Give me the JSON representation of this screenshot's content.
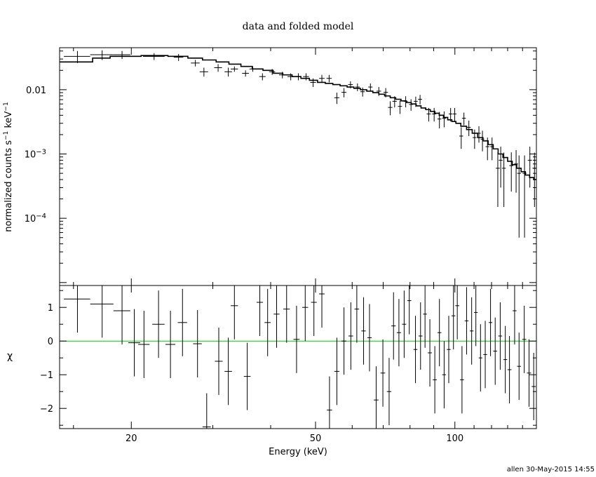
{
  "chart_data": [
    {
      "type": "scatter",
      "title": "data and folded model",
      "ylabel": "normalized counts s^-1 keV^-1",
      "xscale": "log",
      "yscale": "log",
      "xlim": [
        14,
        150
      ],
      "ylim": [
        9e-06,
        0.045
      ],
      "y_ticks": [
        {
          "value": 0.01,
          "label": "0.01"
        },
        {
          "value": 0.001,
          "label": "10",
          "exp": "−3"
        },
        {
          "value": 0.0001,
          "label": "10",
          "exp": "−4"
        }
      ],
      "series": [
        {
          "kind": "data",
          "color": "#000000",
          "points": [
            [
              15.3,
              0.033,
              1.0,
              0.007
            ],
            [
              17.3,
              0.035,
              1.0,
              0.006
            ],
            [
              19.1,
              0.035,
              0.8,
              0.005
            ],
            [
              22.4,
              0.033,
              1.2,
              0.004
            ],
            [
              25.3,
              0.032,
              0.6,
              0.004
            ],
            [
              27.5,
              0.026,
              0.6,
              0.003
            ],
            [
              28.7,
              0.019,
              0.6,
              0.003
            ],
            [
              30.8,
              0.022,
              0.6,
              0.003
            ],
            [
              32.4,
              0.019,
              0.6,
              0.003
            ],
            [
              33.4,
              0.021,
              0.6,
              0.002
            ],
            [
              35.3,
              0.018,
              0.6,
              0.002
            ],
            [
              36.6,
              0.021,
              0.6,
              0.002
            ],
            [
              38.4,
              0.016,
              0.6,
              0.002
            ],
            [
              40.3,
              0.019,
              0.6,
              0.002
            ],
            [
              42.4,
              0.017,
              0.7,
              0.002
            ],
            [
              44.2,
              0.016,
              0.7,
              0.002
            ],
            [
              45.9,
              0.016,
              0.7,
              0.002
            ],
            [
              47.7,
              0.016,
              0.7,
              0.002
            ],
            [
              49.4,
              0.013,
              0.7,
              0.002
            ],
            [
              51.6,
              0.015,
              0.7,
              0.002
            ],
            [
              53.5,
              0.015,
              0.7,
              0.002
            ],
            [
              55.6,
              0.0075,
              0.7,
              0.0015
            ],
            [
              57.6,
              0.0091,
              0.7,
              0.0015
            ],
            [
              59.5,
              0.012,
              0.7,
              0.0015
            ],
            [
              61.6,
              0.011,
              0.7,
              0.0015
            ],
            [
              63.2,
              0.0093,
              0.7,
              0.0015
            ],
            [
              65.7,
              0.011,
              0.7,
              0.0015
            ],
            [
              68.5,
              0.0095,
              0.8,
              0.0015
            ],
            [
              70.9,
              0.0091,
              0.8,
              0.0015
            ],
            [
              72.5,
              0.0053,
              0.8,
              0.0013
            ],
            [
              74.1,
              0.0066,
              0.8,
              0.0013
            ],
            [
              76.1,
              0.0055,
              0.8,
              0.0013
            ],
            [
              78.3,
              0.0066,
              0.8,
              0.0013
            ],
            [
              80.4,
              0.0059,
              0.8,
              0.0012
            ],
            [
              82.3,
              0.0066,
              0.8,
              0.0012
            ],
            [
              84.1,
              0.0071,
              0.8,
              0.0012
            ],
            [
              87.8,
              0.0042,
              0.9,
              0.001
            ],
            [
              90.2,
              0.0042,
              0.9,
              0.001
            ],
            [
              92.6,
              0.0035,
              0.9,
              0.001
            ],
            [
              94.8,
              0.0036,
              0.9,
              0.001
            ],
            [
              97.9,
              0.0042,
              0.9,
              0.001
            ],
            [
              99.9,
              0.0042,
              0.9,
              0.001
            ],
            [
              103.2,
              0.0019,
              1.0,
              0.0007
            ],
            [
              104.6,
              0.0036,
              1.0,
              0.0008
            ],
            [
              107.2,
              0.0026,
              1.0,
              0.0007
            ],
            [
              110.3,
              0.0018,
              1.0,
              0.0006
            ],
            [
              112.7,
              0.0021,
              1.0,
              0.0006
            ],
            [
              114.7,
              0.0017,
              1.0,
              0.0006
            ],
            [
              117.6,
              0.0013,
              1.1,
              0.0005
            ],
            [
              120.3,
              0.0013,
              1.1,
              0.0005
            ],
            [
              123.8,
              0.0006,
              1.2,
              0.00045
            ],
            [
              125.6,
              0.0008,
              1.2,
              0.0005
            ],
            [
              127.6,
              0.0006,
              1.2,
              0.00045
            ],
            [
              132.4,
              0.00066,
              1.3,
              0.0004
            ],
            [
              135.6,
              0.0007,
              1.3,
              0.00045
            ],
            [
              137.6,
              0.0005,
              1.3,
              0.00045
            ],
            [
              141.4,
              0.0005,
              1.4,
              0.00045
            ],
            [
              145.2,
              0.0008,
              1.5,
              0.0005
            ],
            [
              148.6,
              0.0006,
              1.5,
              0.00045
            ]
          ]
        },
        {
          "kind": "model",
          "color": "#000000",
          "steps": [
            [
              14.0,
              0.027
            ],
            [
              16.5,
              0.031
            ],
            [
              18.0,
              0.033
            ],
            [
              21.0,
              0.034
            ],
            [
              24.0,
              0.033
            ],
            [
              26.5,
              0.031
            ],
            [
              28.5,
              0.029
            ],
            [
              30.5,
              0.027
            ],
            [
              32.5,
              0.025
            ],
            [
              34.5,
              0.023
            ],
            [
              36.5,
              0.021
            ],
            [
              38.5,
              0.02
            ],
            [
              40.5,
              0.018
            ],
            [
              42.5,
              0.017
            ],
            [
              44.5,
              0.016
            ],
            [
              46.5,
              0.015
            ],
            [
              48.5,
              0.014
            ],
            [
              50.5,
              0.013
            ],
            [
              52.5,
              0.0125
            ],
            [
              54.5,
              0.012
            ],
            [
              56.5,
              0.0115
            ],
            [
              58.5,
              0.011
            ],
            [
              60.5,
              0.0105
            ],
            [
              62.5,
              0.01
            ],
            [
              64.5,
              0.0095
            ],
            [
              66.5,
              0.009
            ],
            [
              68.5,
              0.0085
            ],
            [
              70.5,
              0.008
            ],
            [
              72.5,
              0.0075
            ],
            [
              74.5,
              0.0071
            ],
            [
              76.5,
              0.0067
            ],
            [
              78.5,
              0.0063
            ],
            [
              80.5,
              0.006
            ],
            [
              82.5,
              0.0056
            ],
            [
              84.5,
              0.0052
            ],
            [
              86.5,
              0.0049
            ],
            [
              88.5,
              0.0046
            ],
            [
              90.5,
              0.0043
            ],
            [
              92.5,
              0.004
            ],
            [
              94.5,
              0.0037
            ],
            [
              96.5,
              0.0034
            ],
            [
              98.5,
              0.0032
            ],
            [
              100.5,
              0.003
            ],
            [
              103.0,
              0.0027
            ],
            [
              106.0,
              0.0024
            ],
            [
              109.0,
              0.0021
            ],
            [
              112.0,
              0.0018
            ],
            [
              115.0,
              0.0016
            ],
            [
              118.0,
              0.0014
            ],
            [
              121.0,
              0.0012
            ],
            [
              124.0,
              0.001
            ],
            [
              127.0,
              0.00088
            ],
            [
              130.0,
              0.00077
            ],
            [
              133.0,
              0.00068
            ],
            [
              136.0,
              0.0006
            ],
            [
              139.0,
              0.00053
            ],
            [
              142.0,
              0.00047
            ],
            [
              145.0,
              0.00043
            ],
            [
              148.0,
              0.0004
            ],
            [
              150.0,
              0.0004
            ]
          ]
        }
      ]
    },
    {
      "type": "scatter",
      "xlabel": "Energy (keV)",
      "ylabel": "χ",
      "xscale": "log",
      "xlim": [
        14,
        150
      ],
      "ylim": [
        -2.6,
        1.65
      ],
      "x_ticks": [
        {
          "value": 20,
          "label": "20"
        },
        {
          "value": 50,
          "label": "50"
        },
        {
          "value": 100,
          "label": "100"
        }
      ],
      "y_ticks": [
        {
          "value": 1,
          "label": "1"
        },
        {
          "value": 0,
          "label": "0"
        },
        {
          "value": -1,
          "label": "−1"
        },
        {
          "value": -2,
          "label": "−2"
        }
      ],
      "zero_line_color": "#00cc00",
      "series": [
        {
          "kind": "residuals",
          "color": "#000000",
          "points": [
            [
              15.3,
              1.25,
              1.0,
              1.0
            ],
            [
              17.3,
              1.1,
              1.0,
              1.0
            ],
            [
              19.1,
              0.9,
              0.8,
              1.0
            ],
            [
              20.3,
              -0.05,
              0.6,
              1.0
            ],
            [
              21.3,
              -0.1,
              0.6,
              1.0
            ],
            [
              22.9,
              0.5,
              0.7,
              1.0
            ],
            [
              24.3,
              -0.1,
              0.6,
              1.0
            ],
            [
              25.8,
              0.55,
              0.6,
              1.0
            ],
            [
              27.8,
              -0.08,
              0.6,
              1.0
            ],
            [
              29.1,
              -2.55,
              0.6,
              1.0
            ],
            [
              30.9,
              -0.6,
              0.6,
              1.0
            ],
            [
              32.4,
              -0.9,
              0.6,
              1.0
            ],
            [
              33.4,
              1.05,
              0.6,
              1.0
            ],
            [
              35.6,
              -1.05,
              0.6,
              1.0
            ],
            [
              37.9,
              1.15,
              0.6,
              1.0
            ],
            [
              39.4,
              0.55,
              0.6,
              1.0
            ],
            [
              41.2,
              0.8,
              0.6,
              1.0
            ],
            [
              43.3,
              0.95,
              0.7,
              1.0
            ],
            [
              45.5,
              0.05,
              0.7,
              1.0
            ],
            [
              47.5,
              1.0,
              0.7,
              1.0
            ],
            [
              49.6,
              1.15,
              0.7,
              1.0
            ],
            [
              51.6,
              1.4,
              0.7,
              1.0
            ],
            [
              53.6,
              -2.05,
              0.7,
              1.0
            ],
            [
              55.6,
              -0.9,
              0.7,
              1.0
            ],
            [
              57.6,
              0.0,
              0.7,
              1.0
            ],
            [
              59.6,
              0.15,
              0.7,
              1.0
            ],
            [
              61.4,
              0.95,
              0.7,
              1.0
            ],
            [
              63.5,
              0.3,
              0.7,
              1.0
            ],
            [
              65.4,
              0.1,
              0.7,
              1.0
            ],
            [
              67.6,
              -1.75,
              0.8,
              1.0
            ],
            [
              69.9,
              -0.95,
              0.8,
              1.0
            ],
            [
              72.1,
              -1.5,
              0.8,
              1.0
            ],
            [
              73.7,
              0.45,
              0.8,
              1.0
            ],
            [
              75.7,
              0.25,
              0.8,
              1.0
            ],
            [
              77.7,
              0.5,
              0.8,
              1.0
            ],
            [
              79.7,
              1.2,
              0.8,
              1.0
            ],
            [
              82.2,
              -0.25,
              0.8,
              1.0
            ],
            [
              84.3,
              0.15,
              0.8,
              1.0
            ],
            [
              86.2,
              0.8,
              0.8,
              1.0
            ],
            [
              88.3,
              -0.35,
              0.9,
              1.0
            ],
            [
              90.5,
              -1.15,
              0.9,
              1.0
            ],
            [
              92.6,
              0.25,
              0.9,
              1.0
            ],
            [
              94.8,
              -1.0,
              0.9,
              1.0
            ],
            [
              97.0,
              -0.25,
              0.9,
              1.0
            ],
            [
              99.3,
              0.75,
              0.9,
              1.0
            ],
            [
              101.2,
              1.05,
              1.0,
              1.0
            ],
            [
              103.6,
              -1.15,
              1.0,
              1.0
            ],
            [
              106.0,
              0.6,
              1.0,
              1.0
            ],
            [
              108.7,
              0.3,
              1.0,
              1.0
            ],
            [
              111.0,
              0.85,
              1.0,
              1.0
            ],
            [
              113.6,
              -0.5,
              1.0,
              1.0
            ],
            [
              116.3,
              -0.4,
              1.1,
              1.0
            ],
            [
              119.4,
              0.55,
              1.1,
              1.0
            ],
            [
              122.2,
              -0.3,
              1.2,
              1.0
            ],
            [
              125.3,
              0.15,
              1.2,
              1.0
            ],
            [
              128.5,
              -0.55,
              1.2,
              1.0
            ],
            [
              131.2,
              -0.85,
              1.3,
              1.0
            ],
            [
              134.6,
              0.9,
              1.3,
              1.0
            ],
            [
              137.6,
              -0.75,
              1.3,
              1.0
            ],
            [
              141.2,
              0.05,
              1.4,
              1.0
            ],
            [
              144.6,
              -0.95,
              1.5,
              1.0
            ],
            [
              148.0,
              -1.35,
              1.5,
              1.0
            ]
          ]
        }
      ]
    }
  ],
  "footer": {
    "stamp": "allen 30-May-2015 14:55"
  }
}
